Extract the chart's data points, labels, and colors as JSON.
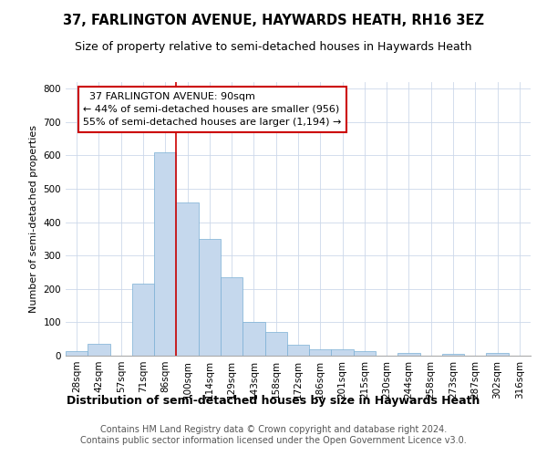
{
  "title": "37, FARLINGTON AVENUE, HAYWARDS HEATH, RH16 3EZ",
  "subtitle": "Size of property relative to semi-detached houses in Haywards Heath",
  "xlabel": "Distribution of semi-detached houses by size in Haywards Heath",
  "ylabel": "Number of semi-detached properties",
  "footer_line1": "Contains HM Land Registry data © Crown copyright and database right 2024.",
  "footer_line2": "Contains public sector information licensed under the Open Government Licence v3.0.",
  "categories": [
    "28sqm",
    "42sqm",
    "57sqm",
    "71sqm",
    "86sqm",
    "100sqm",
    "114sqm",
    "129sqm",
    "143sqm",
    "158sqm",
    "172sqm",
    "186sqm",
    "201sqm",
    "215sqm",
    "230sqm",
    "244sqm",
    "258sqm",
    "273sqm",
    "287sqm",
    "302sqm",
    "316sqm"
  ],
  "values": [
    13,
    35,
    0,
    215,
    610,
    460,
    350,
    235,
    100,
    72,
    32,
    20,
    18,
    13,
    0,
    8,
    0,
    5,
    0,
    7,
    0
  ],
  "bar_color": "#c5d8ed",
  "bar_edge_color": "#7aafd4",
  "vline_color": "#cc0000",
  "annotation_text": "  37 FARLINGTON AVENUE: 90sqm\n← 44% of semi-detached houses are smaller (956)\n55% of semi-detached houses are larger (1,194) →",
  "annotation_box_edge": "#cc0000",
  "ylim": [
    0,
    820
  ],
  "yticks": [
    0,
    100,
    200,
    300,
    400,
    500,
    600,
    700,
    800
  ],
  "title_fontsize": 10.5,
  "subtitle_fontsize": 9,
  "xlabel_fontsize": 9,
  "ylabel_fontsize": 8,
  "tick_fontsize": 7.5,
  "annotation_fontsize": 8,
  "footer_fontsize": 7,
  "background_color": "#ffffff",
  "grid_color": "#ccd8ea"
}
